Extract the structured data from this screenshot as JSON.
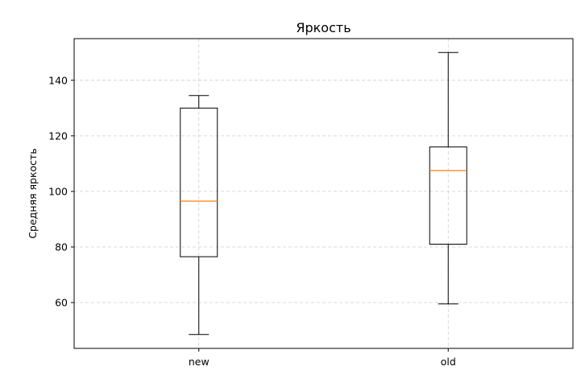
{
  "chart_data": {
    "type": "boxplot",
    "title": "Яркость",
    "xlabel": "",
    "ylabel": "Средняя яркость",
    "categories": [
      "new",
      "old"
    ],
    "boxes": [
      {
        "label": "new",
        "whisker_low": 48.5,
        "q1": 76.5,
        "median": 96.5,
        "q3": 130.0,
        "whisker_high": 134.5
      },
      {
        "label": "old",
        "whisker_low": 59.5,
        "q1": 81.0,
        "median": 107.5,
        "q3": 116.0,
        "whisker_high": 150.0
      }
    ],
    "ylim": [
      43.5,
      155.0
    ],
    "yticks": [
      60,
      80,
      100,
      120,
      140
    ],
    "grid": true,
    "colors": {
      "box": "#000000",
      "median": "#ff7f0e",
      "grid": "#cccccc"
    }
  }
}
